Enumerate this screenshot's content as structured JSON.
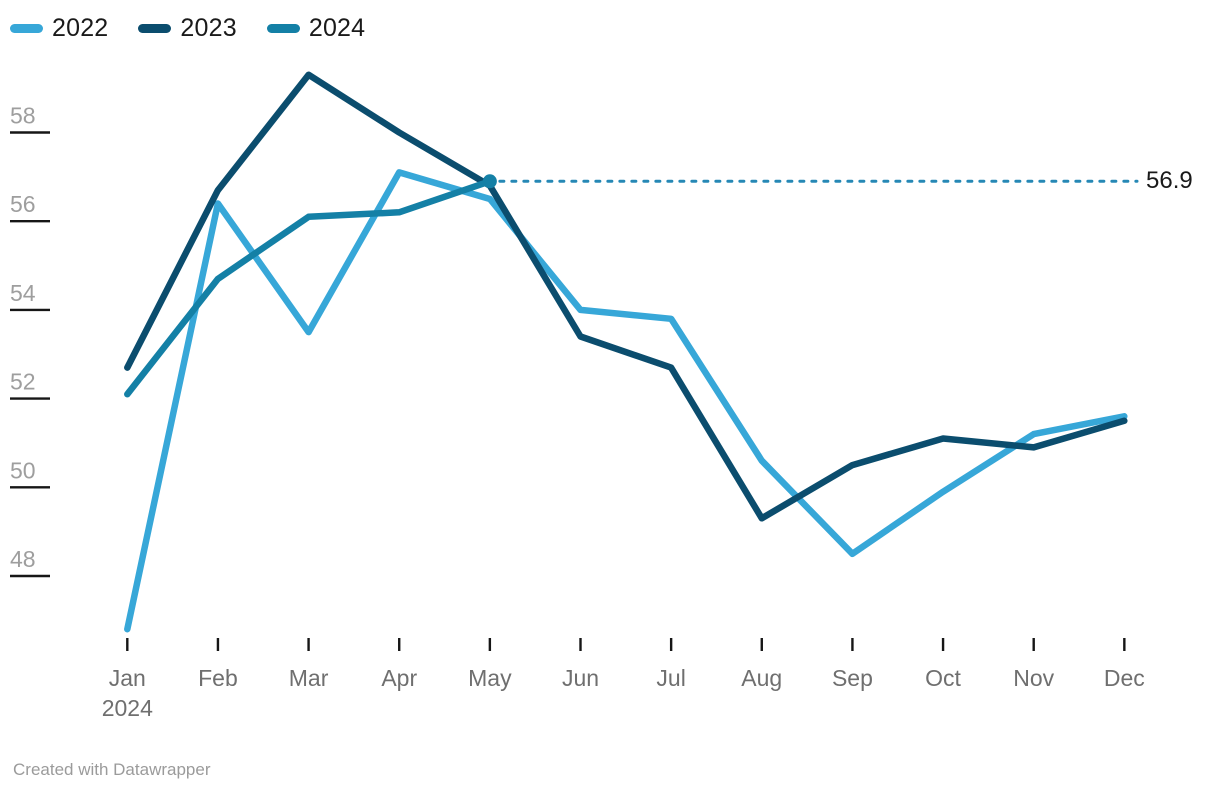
{
  "legend": {
    "items": [
      {
        "label": "2022",
        "color": "#37a7d8"
      },
      {
        "label": "2023",
        "color": "#0b4d6e"
      },
      {
        "label": "2024",
        "color": "#1480a6"
      }
    ]
  },
  "chart_data": {
    "type": "line",
    "title": "",
    "categories": [
      "Jan",
      "Feb",
      "Mar",
      "Apr",
      "May",
      "Jun",
      "Jul",
      "Aug",
      "Sep",
      "Oct",
      "Nov",
      "Dec"
    ],
    "first_category_sublabel": "2024",
    "y_ticks": [
      58,
      56,
      54,
      52,
      50,
      48
    ],
    "ylim": [
      46.3,
      59.6
    ],
    "grid": false,
    "legend_position": "top-left",
    "series": [
      {
        "name": "2022",
        "color": "#37a7d8",
        "values": [
          46.8,
          56.4,
          53.5,
          57.1,
          56.5,
          54.0,
          53.8,
          50.6,
          48.5,
          49.9,
          51.2,
          51.6
        ]
      },
      {
        "name": "2023",
        "color": "#0b4d6e",
        "values": [
          52.7,
          56.7,
          59.3,
          58.0,
          56.8,
          53.4,
          52.7,
          49.3,
          50.5,
          51.1,
          50.9,
          51.5
        ]
      },
      {
        "name": "2024",
        "color": "#1480a6",
        "values": [
          52.1,
          54.7,
          56.1,
          56.2,
          56.9
        ]
      }
    ],
    "annotation": {
      "type": "dotted-line",
      "value": 56.9,
      "label": "56.9"
    },
    "colors": {
      "dotted_line": "#2688b5",
      "axis_tick": "#161616",
      "y_label": "#9e9e9e",
      "x_label": "#6f6f6f"
    }
  },
  "footer": {
    "credit": "Created with Datawrapper"
  }
}
